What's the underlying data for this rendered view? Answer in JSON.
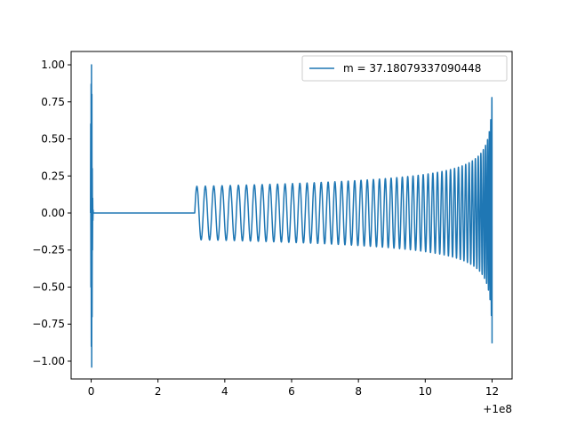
{
  "chart_data": {
    "type": "line",
    "title": "",
    "xlabel": "",
    "ylabel": "",
    "x_offset_label": "+1e8",
    "xlim": [
      -0.6,
      12.6
    ],
    "ylim": [
      -1.12,
      1.09
    ],
    "xticks": [
      0,
      2,
      4,
      6,
      8,
      10,
      12
    ],
    "xtick_labels": [
      "0",
      "2",
      "4",
      "6",
      "8",
      "10",
      "12"
    ],
    "yticks": [
      -1.0,
      -0.75,
      -0.5,
      -0.25,
      0.0,
      0.25,
      0.5,
      0.75,
      1.0
    ],
    "ytick_labels": [
      "−1.00",
      "−0.75",
      "−0.50",
      "−0.25",
      "0.00",
      "0.25",
      "0.50",
      "0.75",
      "1.00"
    ],
    "grid": false,
    "legend_position": "top-right",
    "series": [
      {
        "name": "m = 37.18079337090448",
        "color": "#1f77b4",
        "description_points": {
          "initial_spike": {
            "x": 0.0,
            "y_max": 1.0,
            "y_min": -1.04
          },
          "flat_zero": {
            "x_start": 0.1,
            "x_end": 3.1,
            "y": 0.0
          },
          "oscillation_start": {
            "x": 3.1,
            "amplitude": 0.18
          },
          "oscillation_end": {
            "x": 12.0,
            "amplitude_max": 0.84,
            "amplitude_min": -0.88
          }
        }
      }
    ]
  }
}
